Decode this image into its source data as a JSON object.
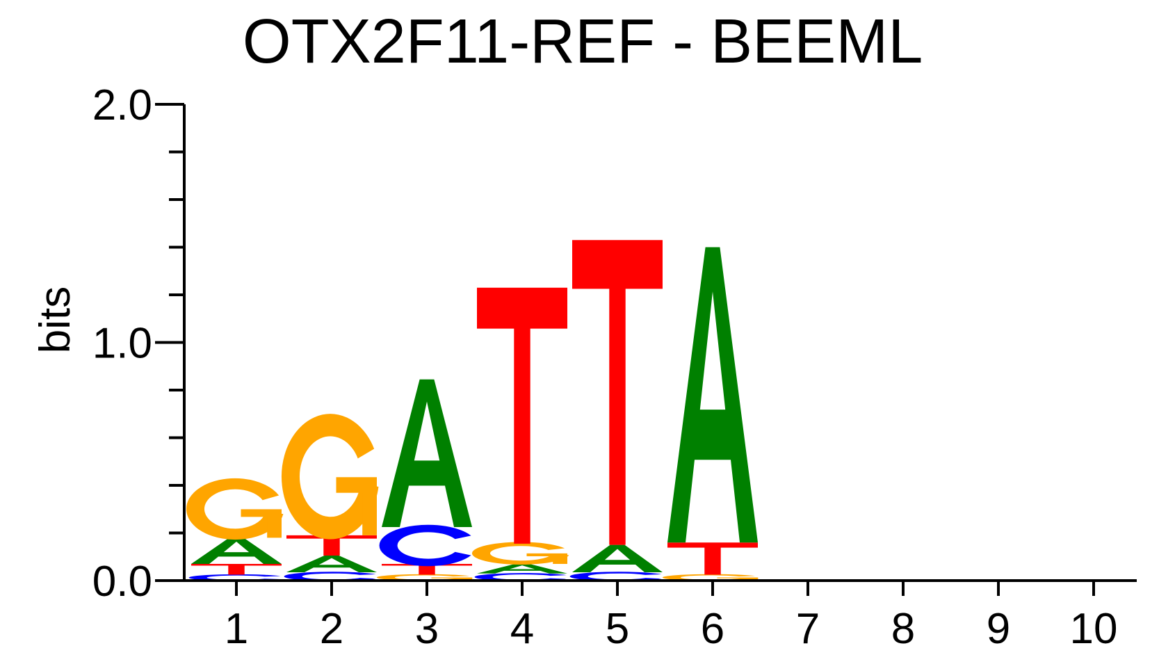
{
  "chart_data": {
    "type": "sequence-logo",
    "title": "OTX2F11-REF - BEEML",
    "xlabel": "",
    "ylabel": "bits",
    "ylim": [
      0,
      2.0
    ],
    "y_ticks": [
      "0.0",
      "1.0",
      "2.0"
    ],
    "y_tick_values": [
      0,
      1,
      2
    ],
    "y_minor_step": 0.2,
    "positions": [
      "1",
      "2",
      "3",
      "4",
      "5",
      "6",
      "7",
      "8",
      "9",
      "10"
    ],
    "colors": {
      "A": "#008000",
      "C": "#0000FF",
      "G": "#FFA500",
      "T": "#FF0000"
    },
    "columns": [
      {
        "position": "1",
        "stack": [
          {
            "letter": "C",
            "height": 0.025
          },
          {
            "letter": "T",
            "height": 0.045
          },
          {
            "letter": "A",
            "height": 0.11
          },
          {
            "letter": "G",
            "height": 0.23
          }
        ]
      },
      {
        "position": "2",
        "stack": [
          {
            "letter": "C",
            "height": 0.035
          },
          {
            "letter": "A",
            "height": 0.07
          },
          {
            "letter": "T",
            "height": 0.085
          },
          {
            "letter": "G",
            "height": 0.47
          }
        ]
      },
      {
        "position": "3",
        "stack": [
          {
            "letter": "G",
            "height": 0.025
          },
          {
            "letter": "T",
            "height": 0.045
          },
          {
            "letter": "C",
            "height": 0.155
          },
          {
            "letter": "A",
            "height": 0.62
          }
        ]
      },
      {
        "position": "4",
        "stack": [
          {
            "letter": "C",
            "height": 0.03
          },
          {
            "letter": "A",
            "height": 0.04
          },
          {
            "letter": "G",
            "height": 0.085
          },
          {
            "letter": "T",
            "height": 1.075
          }
        ]
      },
      {
        "position": "5",
        "stack": [
          {
            "letter": "C",
            "height": 0.035
          },
          {
            "letter": "A",
            "height": 0.115
          },
          {
            "letter": "T",
            "height": 1.28
          }
        ]
      },
      {
        "position": "6",
        "stack": [
          {
            "letter": "G",
            "height": 0.025
          },
          {
            "letter": "T",
            "height": 0.135
          },
          {
            "letter": "A",
            "height": 1.24
          }
        ]
      },
      {
        "position": "7",
        "stack": []
      },
      {
        "position": "8",
        "stack": []
      },
      {
        "position": "9",
        "stack": []
      },
      {
        "position": "10",
        "stack": []
      }
    ]
  }
}
